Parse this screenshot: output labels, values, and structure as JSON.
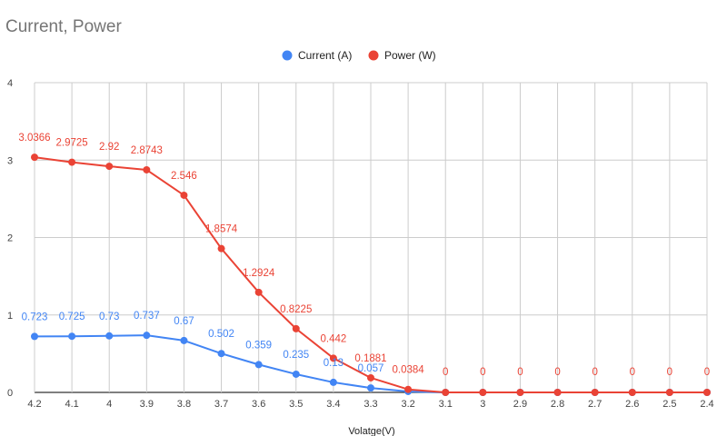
{
  "chart_data": {
    "type": "line",
    "title": "Current, Power",
    "xlabel": "Volatge(V)",
    "ylabel": "",
    "ylim": [
      0,
      4
    ],
    "yticks": [
      0,
      1,
      2,
      3,
      4
    ],
    "grid": true,
    "legend": "top",
    "categories": [
      "4.2",
      "4.1",
      "4",
      "3.9",
      "3.8",
      "3.7",
      "3.6",
      "3.5",
      "3.4",
      "3.3",
      "3.2",
      "3.1",
      "3",
      "2.9",
      "2.8",
      "2.7",
      "2.6",
      "2.5",
      "2.4"
    ],
    "series": [
      {
        "name": "Current (A)",
        "color": "#4285f4",
        "values": [
          0.723,
          0.725,
          0.73,
          0.737,
          0.67,
          0.502,
          0.359,
          0.235,
          0.13,
          0.057,
          0.012,
          0,
          0,
          0,
          0,
          0,
          0,
          0,
          0
        ],
        "labels": [
          "0.723",
          "0.725",
          "0.73",
          "0.737",
          "0.67",
          "0.502",
          "0.359",
          "0.235",
          "0.13",
          "0.057",
          "",
          "",
          "",
          "",
          "",
          "",
          "",
          "",
          ""
        ]
      },
      {
        "name": "Power (W)",
        "color": "#ea4335",
        "values": [
          3.0366,
          2.9725,
          2.92,
          2.8743,
          2.546,
          1.8574,
          1.2924,
          0.8225,
          0.442,
          0.1881,
          0.0384,
          0,
          0,
          0,
          0,
          0,
          0,
          0,
          0
        ],
        "labels": [
          "3.0366",
          "2.9725",
          "2.92",
          "2.8743",
          "2.546",
          "1.8574",
          "1.2924",
          "0.8225",
          "0.442",
          "0.1881",
          "0.0384",
          "0",
          "0",
          "0",
          "0",
          "0",
          "0",
          "0",
          "0"
        ]
      }
    ]
  }
}
